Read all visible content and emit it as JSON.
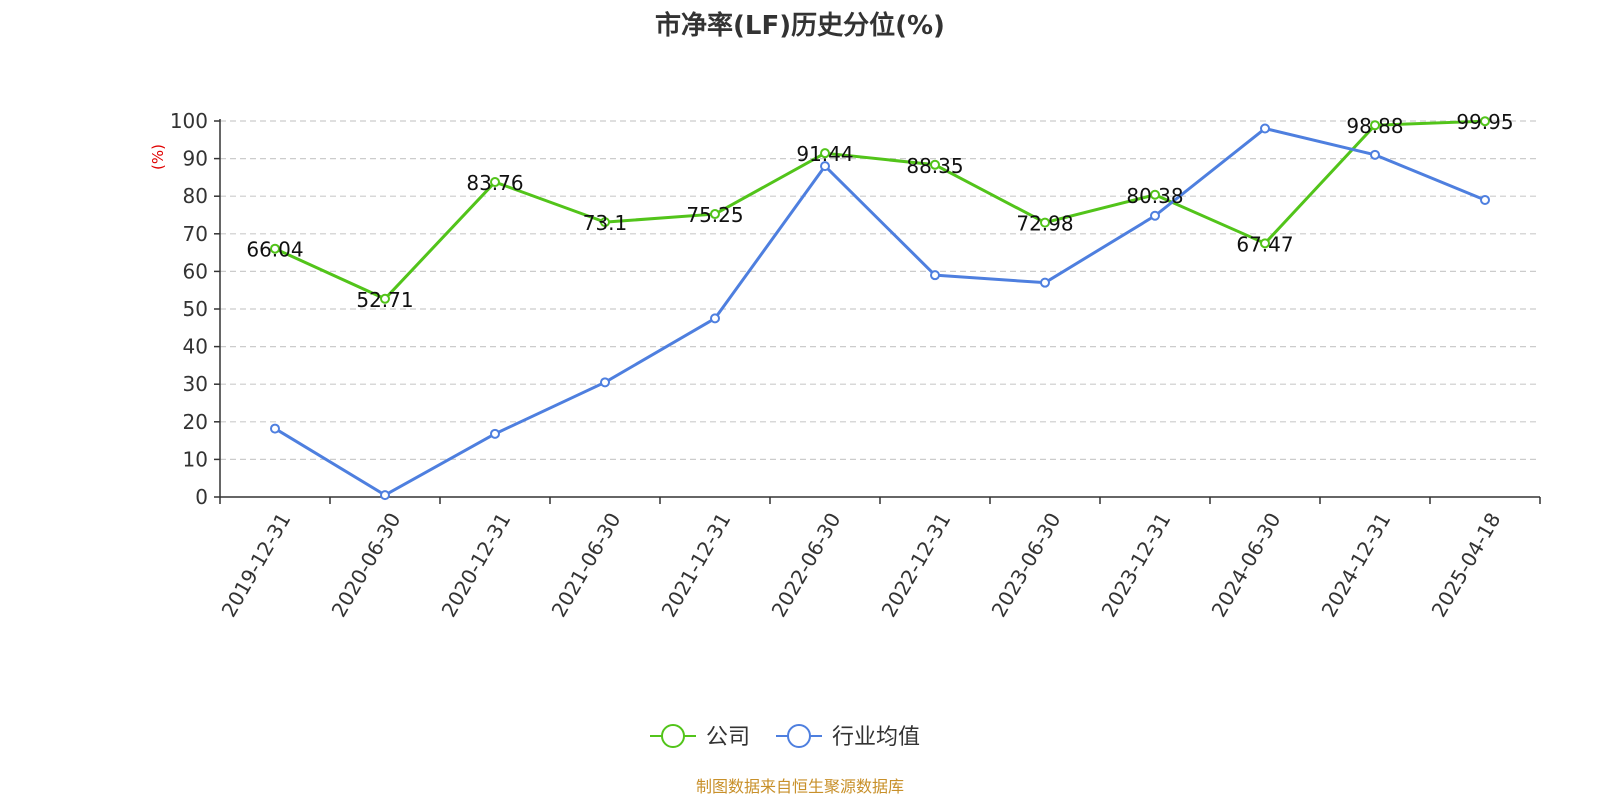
{
  "colors": {
    "company": "#52c41a",
    "industry": "#4e7fdf",
    "unit": "#e00000",
    "source": "#c8902a",
    "grid": "#cccccc",
    "axis": "#333333"
  },
  "source_note": "制图数据来自恒生聚源数据库",
  "chart_data": {
    "type": "line",
    "title": "市净率(LF)历史分位(%)",
    "ylabel": "(%)",
    "xlabel": "",
    "ylim": [
      0,
      100
    ],
    "yticks": [
      0,
      10,
      20,
      30,
      40,
      50,
      60,
      70,
      80,
      90,
      100
    ],
    "grid": true,
    "legend_position": "bottom-center",
    "categories": [
      "2019-12-31",
      "2020-06-30",
      "2020-12-31",
      "2021-06-30",
      "2021-12-31",
      "2022-06-30",
      "2022-12-31",
      "2023-06-30",
      "2023-12-31",
      "2024-06-30",
      "2024-12-31",
      "2025-04-18"
    ],
    "series": [
      {
        "name": "公司",
        "color_key": "company",
        "show_labels": true,
        "values": [
          66.04,
          52.71,
          83.76,
          73.1,
          75.25,
          91.44,
          88.35,
          72.98,
          80.38,
          67.47,
          98.88,
          99.95
        ],
        "labels": [
          "66.04",
          "52.71",
          "83.76",
          "73.1",
          "75.25",
          "91.44",
          "88.35",
          "72.98",
          "80.38",
          "67.47",
          "98.88",
          "99.95"
        ]
      },
      {
        "name": "行业均值",
        "color_key": "industry",
        "show_labels": false,
        "values": [
          18.2,
          0.5,
          16.8,
          30.5,
          47.5,
          88.0,
          59.0,
          57.0,
          74.8,
          98.0,
          91.0,
          79.0
        ]
      }
    ]
  }
}
